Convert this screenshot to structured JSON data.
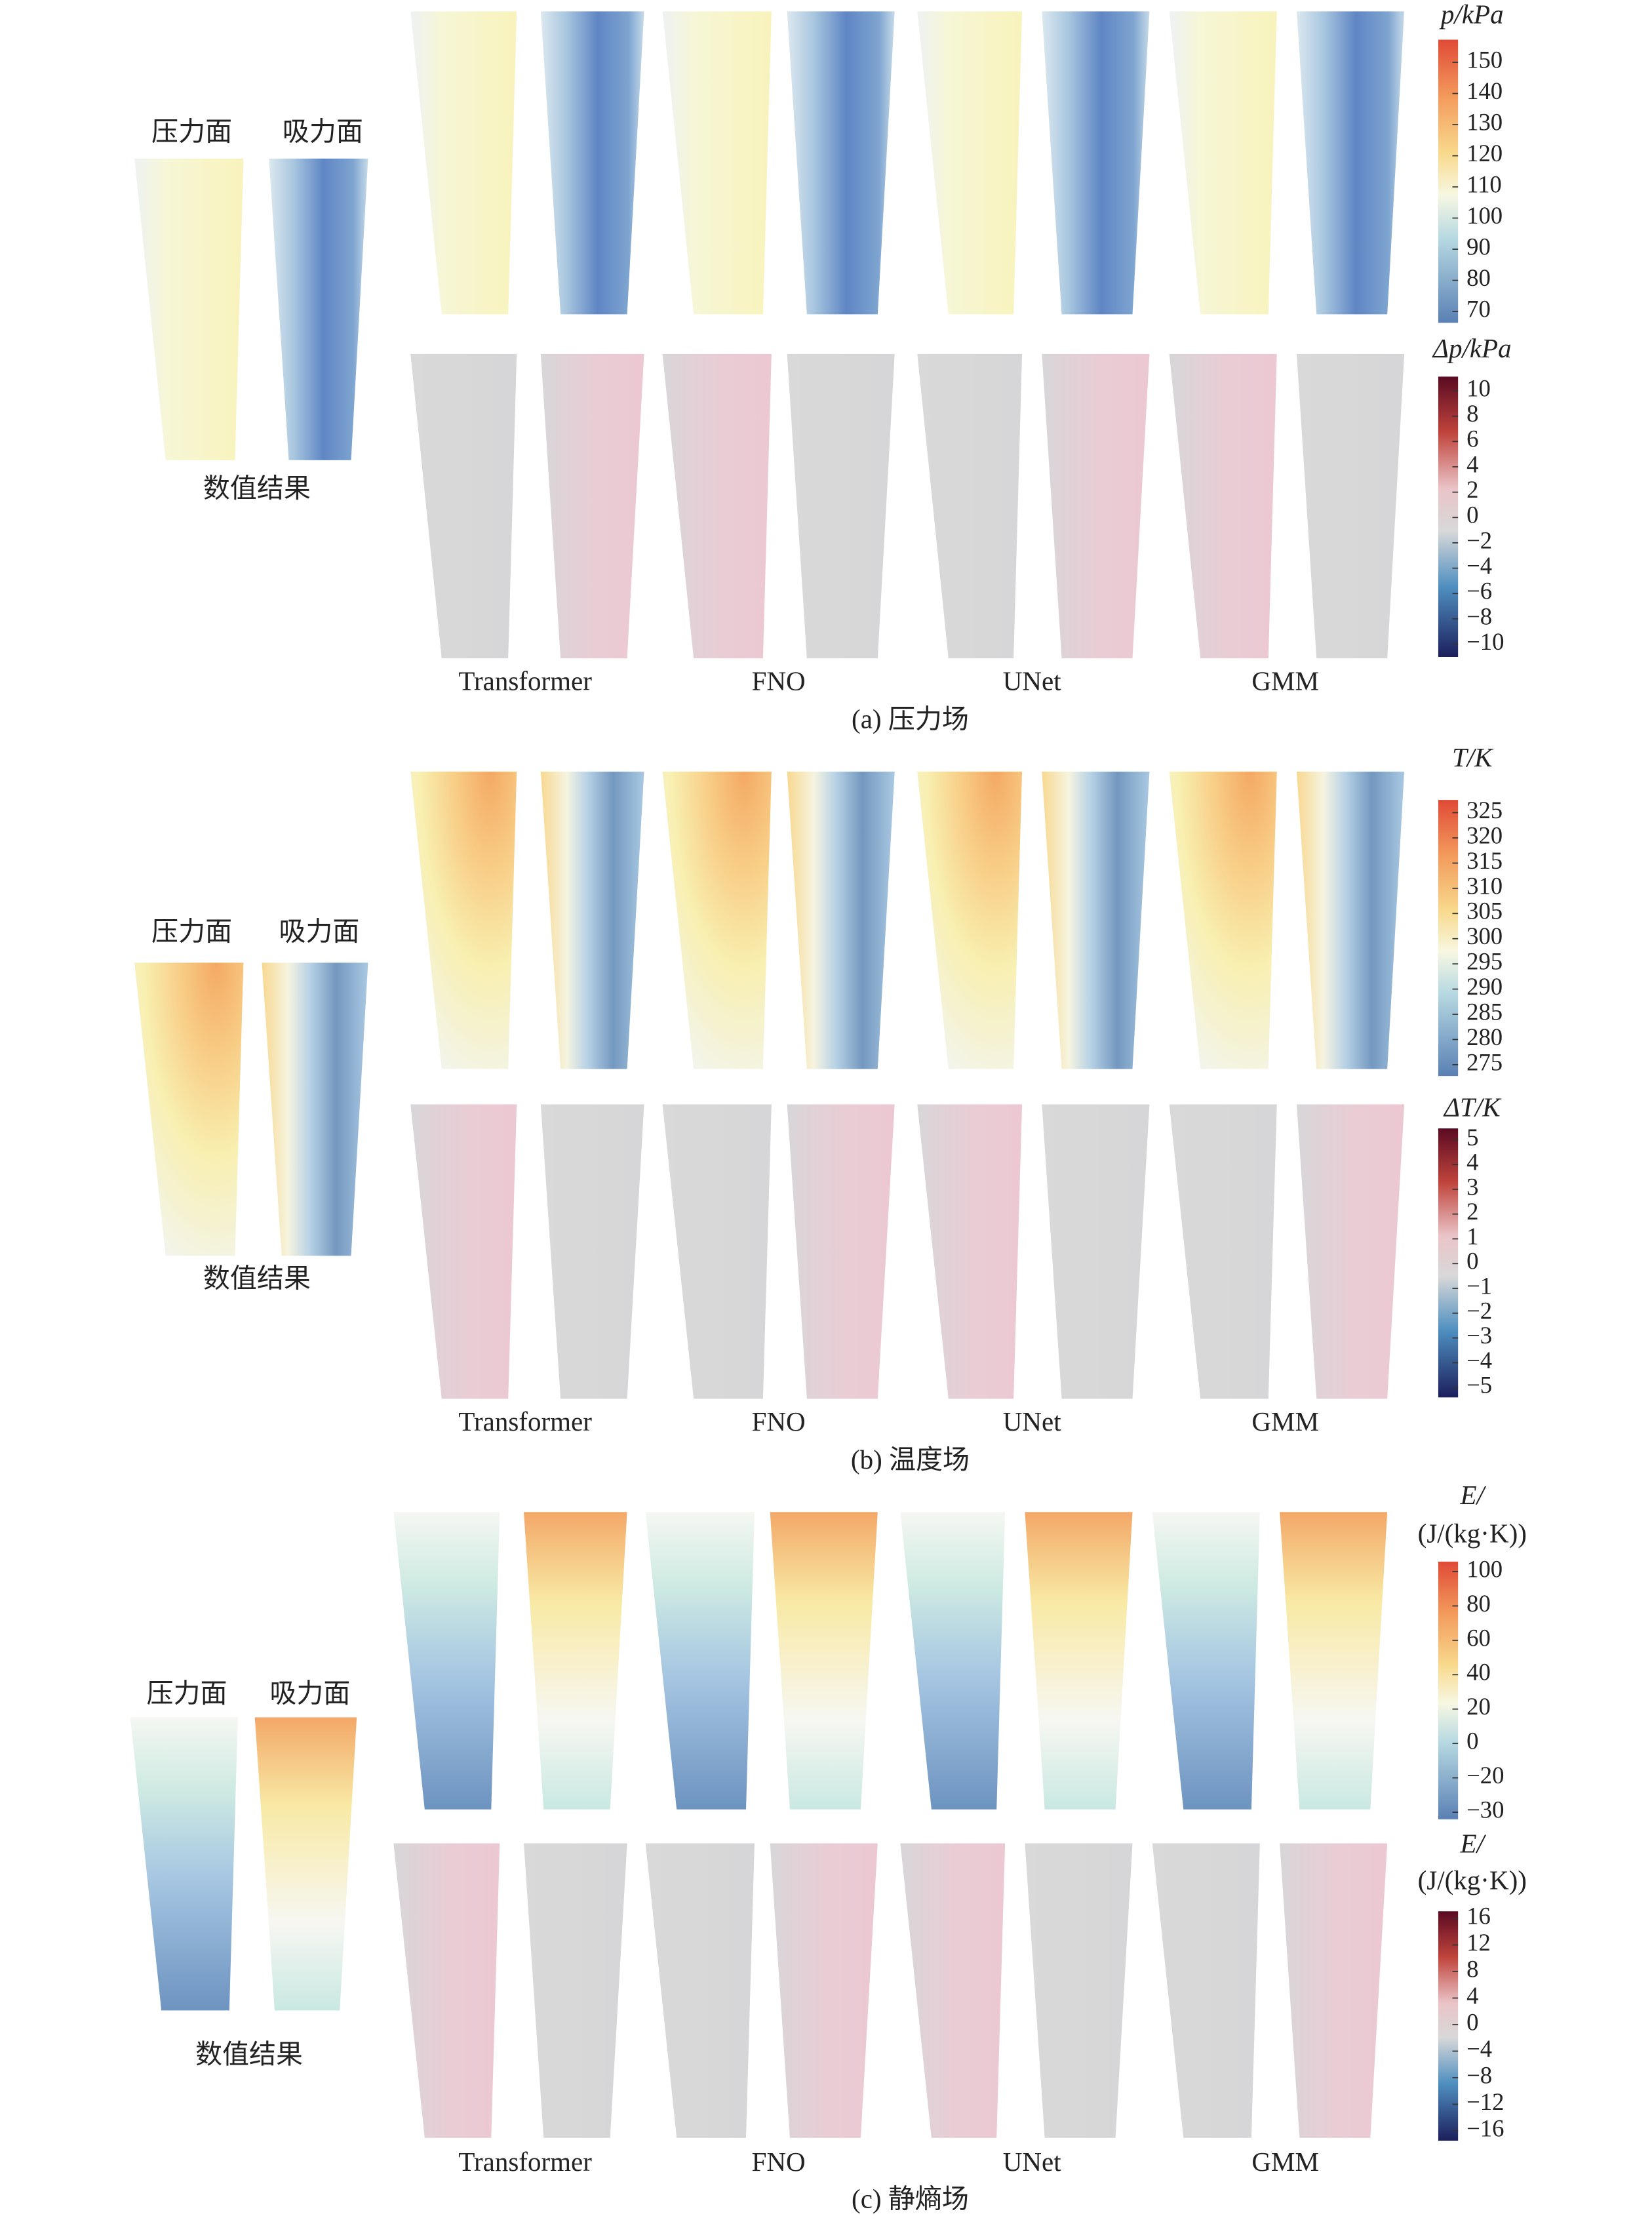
{
  "panels": [
    {
      "caption": "(a) 压力场",
      "reference": {
        "left": "压力面",
        "right": "吸力面",
        "label": "数值结果"
      },
      "models": [
        "Transformer",
        "FNO",
        "UNet",
        "GMM"
      ],
      "colorbars": [
        {
          "title": [
            "p/kPa"
          ],
          "ticks": [
            "150",
            "140",
            "130",
            "120",
            "110",
            "100",
            "90",
            "80",
            "70"
          ]
        },
        {
          "title": [
            "Δp/kPa"
          ],
          "ticks": [
            "10",
            "8",
            "6",
            "4",
            "2",
            "0",
            "−2",
            "−4",
            "−6",
            "−8",
            "−10"
          ]
        }
      ]
    },
    {
      "caption": "(b) 温度场",
      "reference": {
        "left": "压力面",
        "right": "吸力面",
        "label": "数值结果"
      },
      "models": [
        "Transformer",
        "FNO",
        "UNet",
        "GMM"
      ],
      "colorbars": [
        {
          "title": [
            "T/K"
          ],
          "ticks": [
            "325",
            "320",
            "315",
            "310",
            "305",
            "300",
            "295",
            "290",
            "285",
            "280",
            "275"
          ]
        },
        {
          "title": [
            "ΔT/K"
          ],
          "ticks": [
            "5",
            "4",
            "3",
            "2",
            "1",
            "0",
            "−1",
            "−2",
            "−3",
            "−4",
            "−5"
          ]
        }
      ]
    },
    {
      "caption": "(c) 静熵场",
      "reference": {
        "left": "压力面",
        "right": "吸力面",
        "label": "数值结果"
      },
      "models": [
        "Transformer",
        "FNO",
        "UNet",
        "GMM"
      ],
      "colorbars": [
        {
          "title": [
            "E/",
            "(J/(kg·K))"
          ],
          "ticks": [
            "100",
            "80",
            "60",
            "40",
            "20",
            "0",
            "−20",
            "−30"
          ]
        },
        {
          "title": [
            "E/",
            "(J/(kg·K))"
          ],
          "ticks": [
            "16",
            "12",
            "8",
            "4",
            "0",
            "−4",
            "−8",
            "−12",
            "−16"
          ]
        }
      ]
    }
  ]
}
